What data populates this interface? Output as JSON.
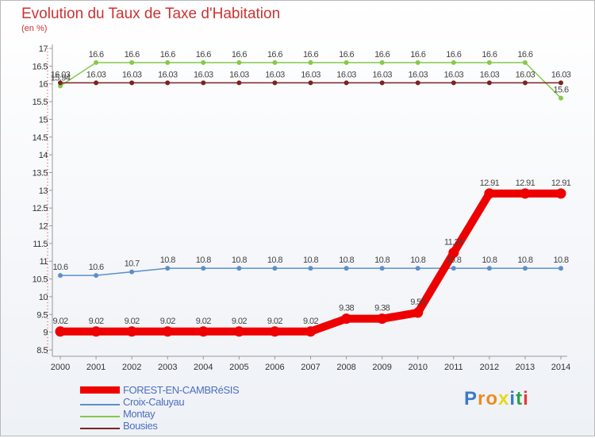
{
  "title": "Evolution du Taux de Taxe d'Habitation",
  "unit": "(en %)",
  "logo": {
    "text": "Proxiti",
    "letters": [
      "P",
      "r",
      "o",
      "x",
      "i",
      "t",
      "i"
    ],
    "colors": [
      "#3b7ac7",
      "#f08a1c",
      "#f08a1c",
      "#e8d81a",
      "#3b7ac7",
      "#2aa24a",
      "#e53935"
    ]
  },
  "chart_data": {
    "type": "line",
    "title": "Evolution du Taux de Taxe d'Habitation",
    "ylabel": "(en %)",
    "xlabel": "",
    "ylim": [
      8.5,
      17
    ],
    "yticks": [
      "8.5",
      "9",
      "9.5",
      "10",
      "10.5",
      "11",
      "11.5",
      "12",
      "12.5",
      "13",
      "13.5",
      "14",
      "14.5",
      "15",
      "15.5",
      "16",
      "16.5",
      "17"
    ],
    "x": [
      "2000",
      "2001",
      "2002",
      "2003",
      "2004",
      "2005",
      "2006",
      "2007",
      "2008",
      "2009",
      "2010",
      "2011",
      "2012",
      "2013",
      "2014"
    ],
    "series": [
      {
        "name": "Montay",
        "color": "#86c94a",
        "width": 1.5,
        "values": [
          15.94,
          16.6,
          16.6,
          16.6,
          16.6,
          16.6,
          16.6,
          16.6,
          16.6,
          16.6,
          16.6,
          16.6,
          16.6,
          16.6,
          15.6
        ],
        "labels": [
          "15.94",
          "16.6",
          "16.6",
          "16.6",
          "16.6",
          "16.6",
          "16.6",
          "16.6",
          "16.6",
          "16.6",
          "16.6",
          "16.6",
          "16.6",
          "16.6",
          "15.6"
        ]
      },
      {
        "name": "Bousies",
        "color": "#7a2323",
        "width": 1.5,
        "values": [
          16.03,
          16.03,
          16.03,
          16.03,
          16.03,
          16.03,
          16.03,
          16.03,
          16.03,
          16.03,
          16.03,
          16.03,
          16.03,
          16.03,
          16.03
        ],
        "labels": [
          "16.03",
          "16.03",
          "16.03",
          "16.03",
          "16.03",
          "16.03",
          "16.03",
          "16.03",
          "16.03",
          "16.03",
          "16.03",
          "16.03",
          "16.03",
          "16.03",
          "16.03"
        ]
      },
      {
        "name": "Croix-Caluyau",
        "color": "#5b8fc9",
        "width": 1.5,
        "values": [
          10.6,
          10.6,
          10.7,
          10.8,
          10.8,
          10.8,
          10.8,
          10.8,
          10.8,
          10.8,
          10.8,
          10.8,
          10.8,
          10.8,
          10.8
        ],
        "labels": [
          "10.6",
          "10.6",
          "10.7",
          "10.8",
          "10.8",
          "10.8",
          "10.8",
          "10.8",
          "10.8",
          "10.8",
          "10.8",
          "10.8",
          "10.8",
          "10.8",
          "10.8"
        ]
      },
      {
        "name": "FOREST-EN-CAMBRéSIS",
        "color": "#ee0000",
        "width": 10,
        "values": [
          9.02,
          9.02,
          9.02,
          9.02,
          9.02,
          9.02,
          9.02,
          9.02,
          9.38,
          9.38,
          9.55,
          11.24,
          12.91,
          12.91,
          12.91
        ],
        "labels": [
          "9.02",
          "9.02",
          "9.02",
          "9.02",
          "9.02",
          "9.02",
          "9.02",
          "9.02",
          "9.38",
          "9.38",
          "9.55",
          "11.24",
          "12.91",
          "12.91",
          "12.91"
        ]
      }
    ],
    "legend": [
      "FOREST-EN-CAMBRéSIS",
      "Croix-Caluyau",
      "Montay",
      "Bousies"
    ],
    "legend_position": "bottom-left",
    "grid": false
  }
}
